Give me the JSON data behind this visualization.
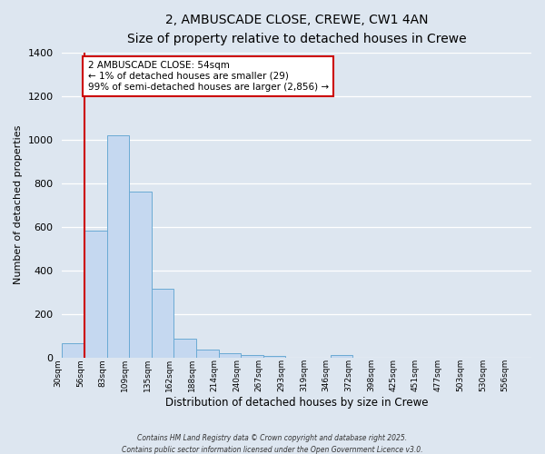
{
  "title": "2, AMBUSCADE CLOSE, CREWE, CW1 4AN",
  "subtitle": "Size of property relative to detached houses in Crewe",
  "xlabel": "Distribution of detached houses by size in Crewe",
  "ylabel": "Number of detached properties",
  "bar_color": "#c5d8f0",
  "bar_edge_color": "#6aaad4",
  "bg_color": "#dde6f0",
  "grid_color": "#ffffff",
  "categories": [
    "30sqm",
    "56sqm",
    "83sqm",
    "109sqm",
    "135sqm",
    "162sqm",
    "188sqm",
    "214sqm",
    "240sqm",
    "267sqm",
    "293sqm",
    "319sqm",
    "346sqm",
    "372sqm",
    "398sqm",
    "425sqm",
    "451sqm",
    "477sqm",
    "503sqm",
    "530sqm",
    "556sqm"
  ],
  "values": [
    65,
    580,
    1020,
    760,
    315,
    88,
    35,
    20,
    12,
    5,
    0,
    0,
    10,
    0,
    0,
    0,
    0,
    0,
    0,
    0,
    0
  ],
  "ylim": [
    0,
    1400
  ],
  "yticks": [
    0,
    200,
    400,
    600,
    800,
    1000,
    1200,
    1400
  ],
  "red_line_index": 1,
  "annotation_title": "2 AMBUSCADE CLOSE: 54sqm",
  "annotation_line1": "← 1% of detached houses are smaller (29)",
  "annotation_line2": "99% of semi-detached houses are larger (2,856) →",
  "annotation_box_color": "#ffffff",
  "annotation_box_edge": "#cc0000",
  "red_line_color": "#cc0000",
  "footer1": "Contains HM Land Registry data © Crown copyright and database right 2025.",
  "footer2": "Contains public sector information licensed under the Open Government Licence v3.0."
}
